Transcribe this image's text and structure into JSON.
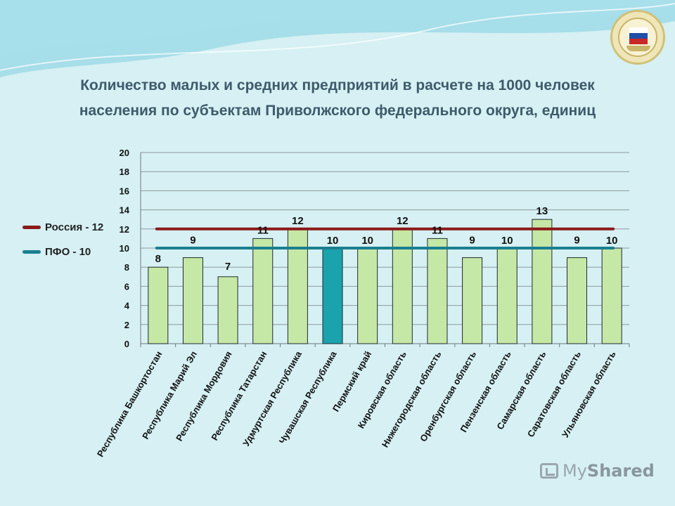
{
  "title": {
    "line1": "Количество малых и средних предприятий в расчете на 1000 человек",
    "line2": "населения по субъектам Приволжского федерального округа, единиц"
  },
  "watermark": {
    "brand_a": "My",
    "brand_b": "Shared"
  },
  "colors": {
    "bar": "#c6e8a6",
    "bar_highlight": "#1aa3ad",
    "russia_line": "#8b1a1a",
    "pfo_line": "#1a7f8f",
    "background": "#d6f0f3"
  },
  "chart_data": {
    "type": "bar",
    "title": "Количество малых и средних предприятий в расчете на 1000 человек населения по субъектам Приволжского федерального округа, единиц",
    "categories": [
      "Республика Башкортостан",
      "Республика Марий Эл",
      "Республика Мордовия",
      "Республика Татарстан",
      "Удмуртская Республика",
      "Чувашская Республика",
      "Пермский край",
      "Кировская область",
      "Нижегородская область",
      "Оренбургская область",
      "Пензенская область",
      "Самарская область",
      "Саратовская область",
      "Ульяновская область"
    ],
    "values": [
      8,
      9,
      7,
      11,
      12,
      10,
      10,
      12,
      11,
      9,
      10,
      13,
      9,
      10
    ],
    "highlight_index": 5,
    "ylim": [
      0,
      20
    ],
    "yticks": [
      0,
      2,
      4,
      6,
      8,
      10,
      12,
      14,
      16,
      18,
      20
    ],
    "grid": true,
    "reference_lines": [
      {
        "name": "Россия - 12",
        "value": 12,
        "color": "#8b1a1a"
      },
      {
        "name": "ПФО - 10",
        "value": 10,
        "color": "#1a7f8f"
      }
    ],
    "xlabel": "",
    "ylabel": "",
    "legend": "left"
  }
}
